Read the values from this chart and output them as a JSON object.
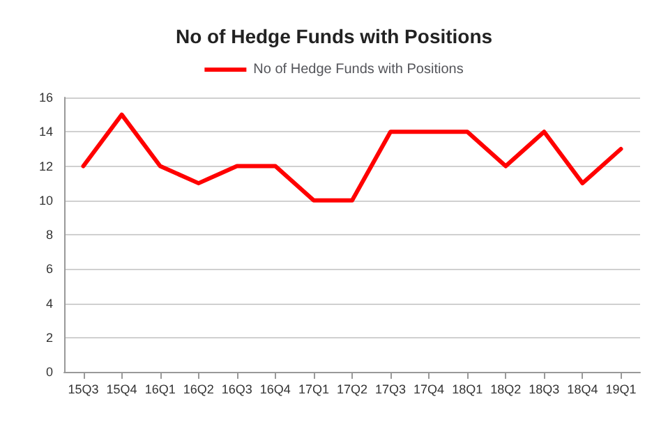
{
  "chart_data": {
    "type": "line",
    "title": "No of Hedge Funds with Positions",
    "categories": [
      "15Q3",
      "15Q4",
      "16Q1",
      "16Q2",
      "16Q3",
      "16Q4",
      "17Q1",
      "17Q2",
      "17Q3",
      "17Q4",
      "18Q1",
      "18Q2",
      "18Q3",
      "18Q4",
      "19Q1"
    ],
    "series": [
      {
        "name": "No of Hedge Funds with Positions",
        "color": "#ff0000",
        "values": [
          12,
          15,
          12,
          11,
          12,
          12,
          10,
          10,
          14,
          14,
          14,
          12,
          14,
          11,
          13
        ]
      }
    ],
    "ylim": [
      0,
      16
    ],
    "yticks": [
      0,
      2,
      4,
      6,
      8,
      10,
      12,
      14,
      16
    ],
    "grid": "y",
    "legend": "top",
    "marker": "none",
    "line_style": "solid"
  }
}
